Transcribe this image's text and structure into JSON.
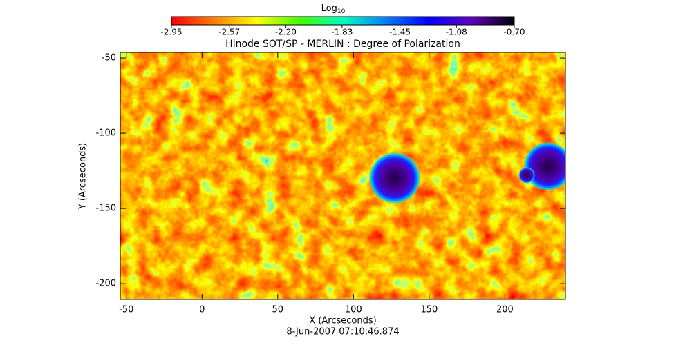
{
  "chart_data": {
    "type": "image",
    "title": "Hinode SOT/SP - MERLIN : Degree of Polarization",
    "subtitle": "8-Jun-2007 07:10:46.874",
    "x_label": "X (Arcseconds)",
    "y_label": "Y (Arcseconds)",
    "xlim": [
      -54,
      240
    ],
    "xticks": [
      -50,
      0,
      50,
      100,
      150,
      200
    ],
    "ylim": [
      -210.5,
      -46.3
    ],
    "yticks": [
      -50,
      -100,
      -150,
      -200
    ],
    "colorbar": {
      "label": "Log",
      "label_subscript": "10",
      "lim": [
        -2.95,
        -0.7
      ],
      "ticks": [
        -2.95,
        -2.57,
        {
          "value": -2.2,
          "label": "-2.20"
        },
        -1.83,
        -1.45,
        -1.08,
        {
          "value": -0.7,
          "label": "-0.70"
        }
      ],
      "colors": [
        "#ff0000",
        "#ff8000",
        "#ffff00",
        "#40ff00",
        "#00ffc0",
        "#0080ff",
        "#0000ff",
        "#6000c0",
        "#000000"
      ]
    }
  }
}
